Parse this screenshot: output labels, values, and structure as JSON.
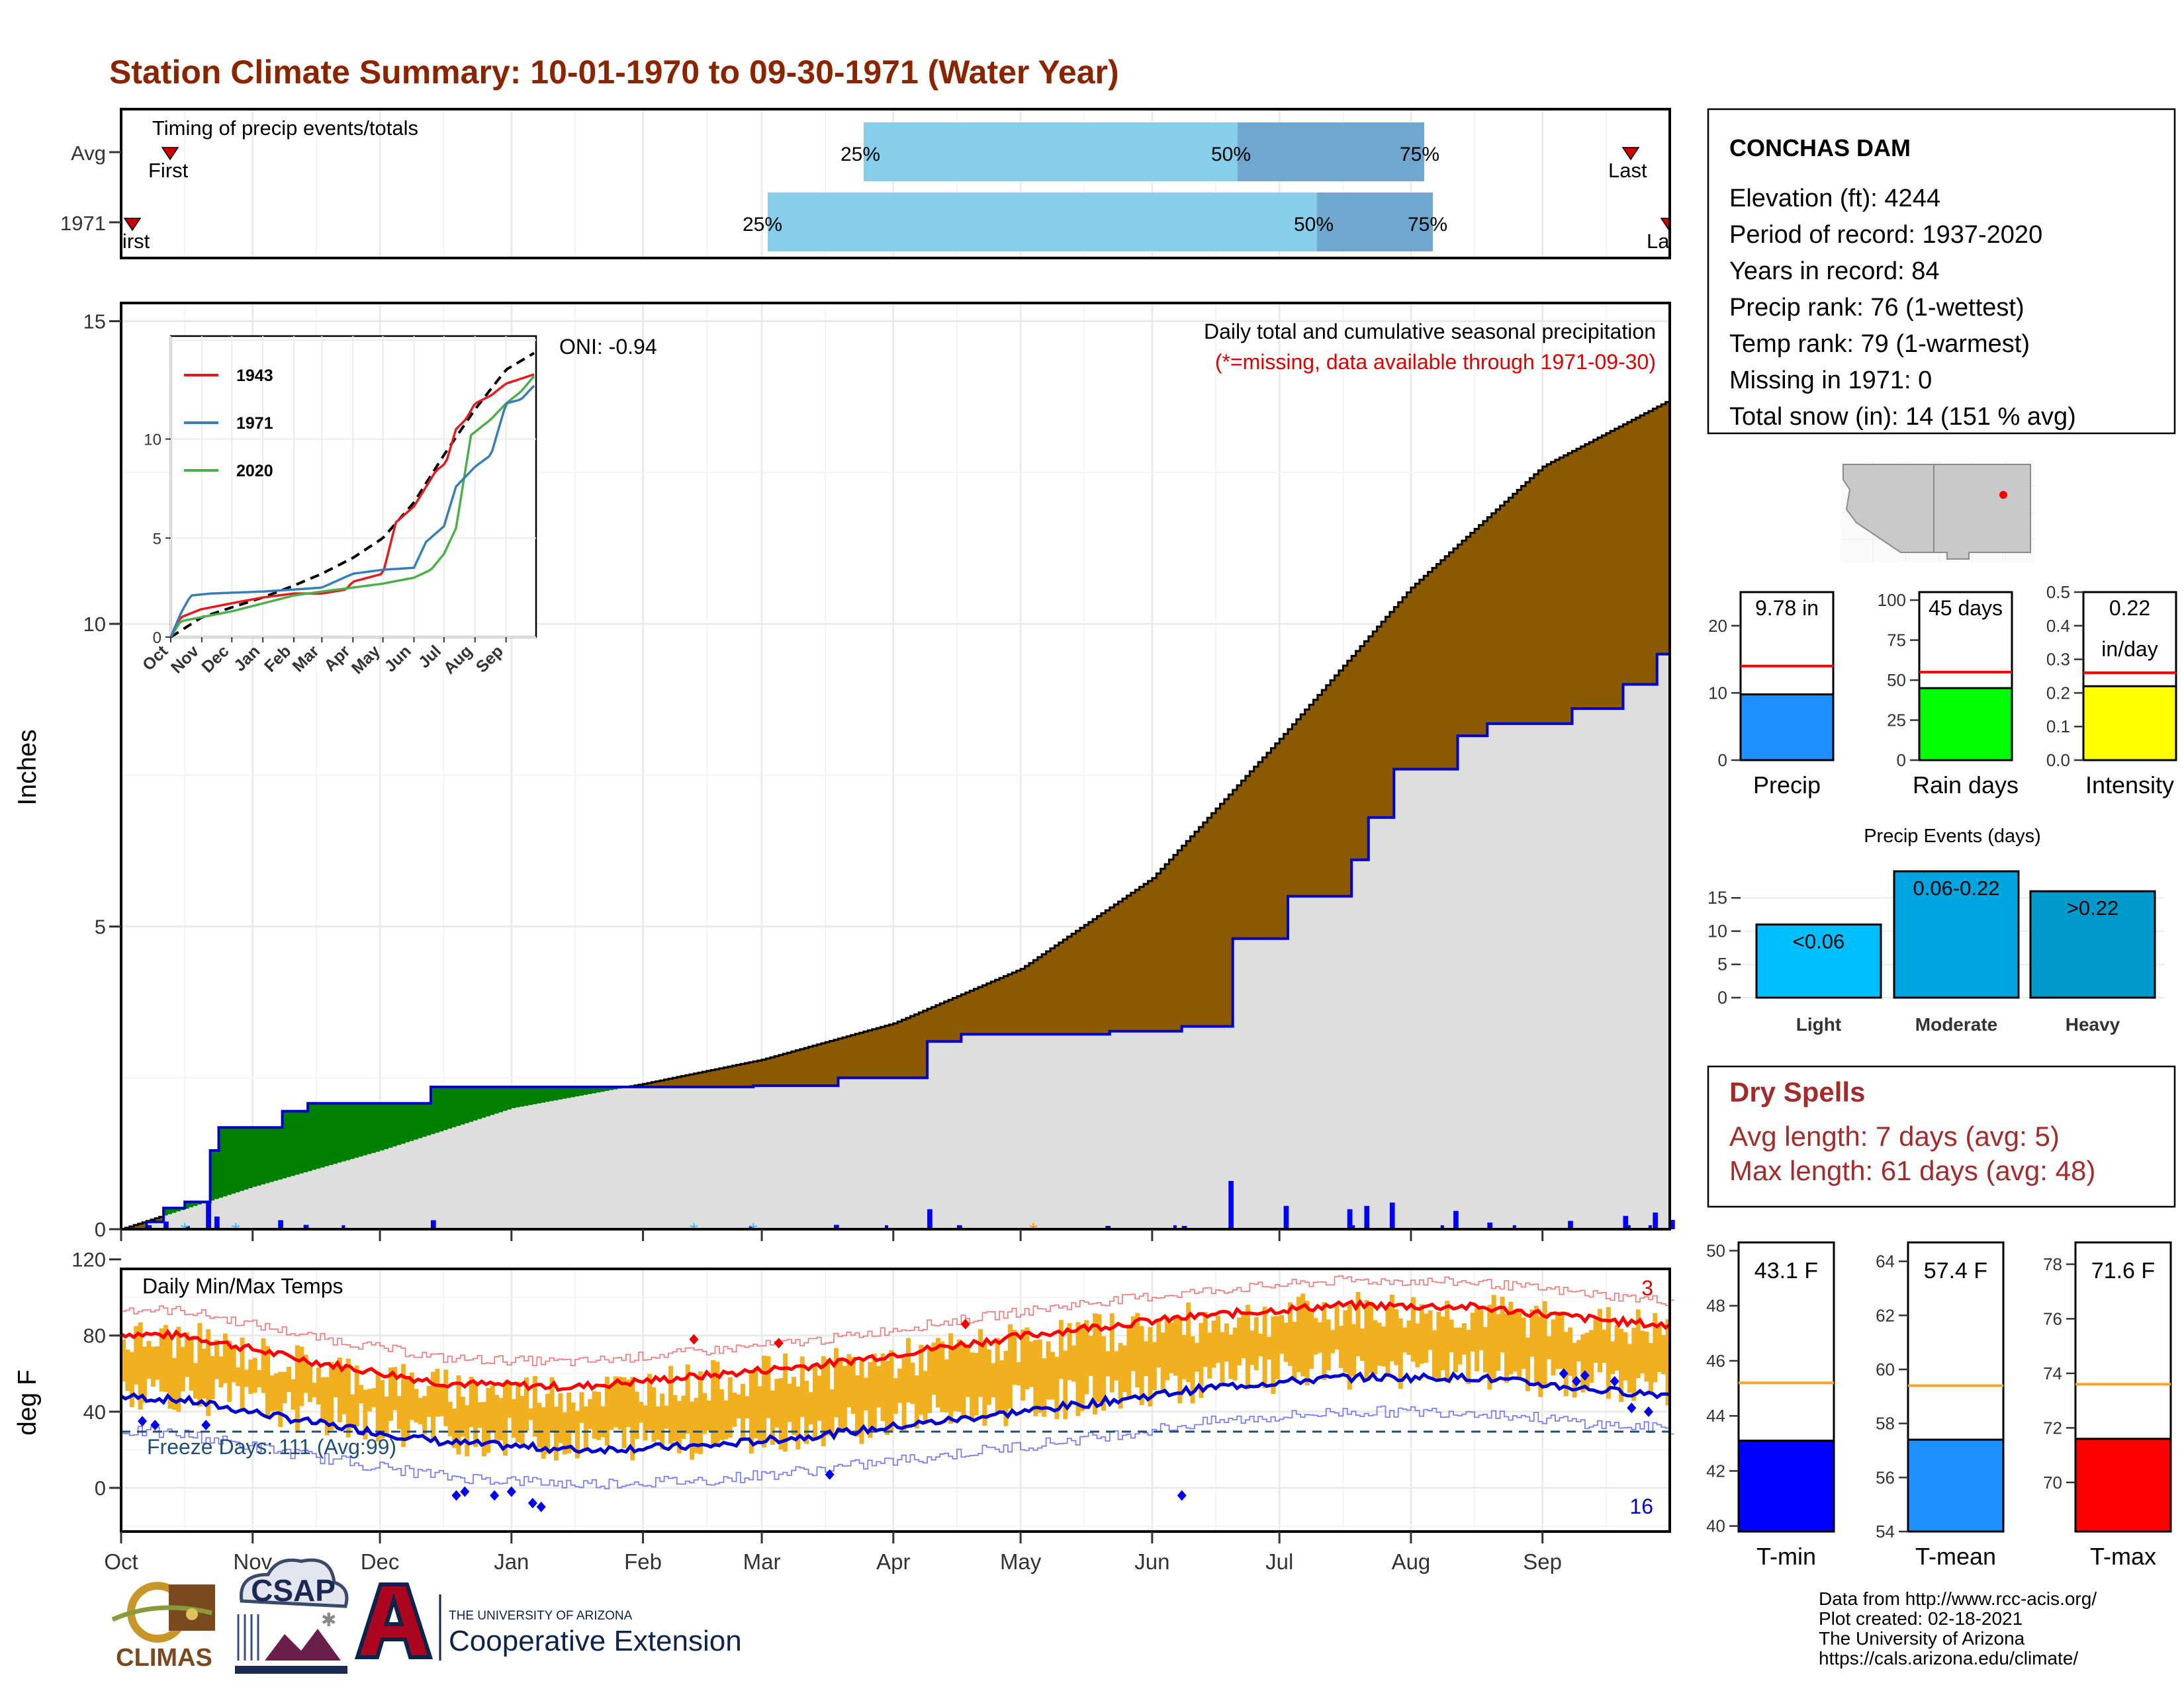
{
  "title": "Station Climate Summary: 10-01-1970 to 09-30-1971 (Water Year)",
  "colors": {
    "title": "#8b2500",
    "observed_cum": "#0000cd",
    "avg_cum_fill": "#8b5a00",
    "above_avg_fill": "#008000",
    "background_fill": "#dedede",
    "tmax_avg": "#ff0000",
    "tmin_avg": "#0000cd",
    "daily_range": "#f0b020",
    "freeze_line": "#1f4e79",
    "precip_gauge": "#1e90ff",
    "rain_days_gauge": "#00ff00",
    "intensity_gauge": "#ffff00",
    "tmin_gauge": "#0000ff",
    "tmean_gauge": "#1e90ff",
    "tmax_gauge": "#ff0000",
    "dry_spells": "#a52a2a",
    "event_light": "#00bfff",
    "event_moderate": "#00a5e0",
    "event_heavy": "#0099cc"
  },
  "timing": {
    "title": "Timing of precip events/totals",
    "rows": [
      {
        "label": "Avg",
        "first_label": "First",
        "last_label": "Last",
        "p25_label": "25%",
        "p50_label": "50%",
        "p75_label": "75%"
      },
      {
        "label": "1971",
        "first_label": "First",
        "last_label": "Last",
        "p25_label": "25%",
        "p50_label": "50%",
        "p75_label": "75%"
      }
    ]
  },
  "station": {
    "name": "CONCHAS DAM",
    "lines": [
      "Elevation (ft): 4244",
      "Period of record: 1937-2020",
      "Years in record: 84",
      "Precip rank: 76 (1-wettest)",
      "Temp rank: 79 (1-warmest)",
      "Missing in 1971: 0",
      "Total snow (in): 14 (151 % avg)"
    ]
  },
  "precip_panel": {
    "ylabel": "Inches",
    "caption": "Daily total and cumulative seasonal precipitation",
    "missing_note": "(*=missing, data available through 1971-09-30)",
    "oni": "ONI: -0.94",
    "month_labels": [
      "Oct",
      "Nov",
      "Dec",
      "Jan",
      "Feb",
      "Mar",
      "Apr",
      "May",
      "Jun",
      "Jul",
      "Aug",
      "Sep"
    ],
    "y_ticks": [
      "0",
      "5",
      "10",
      "15"
    ]
  },
  "inset": {
    "y_ticks": [
      "0",
      "5",
      "10"
    ],
    "x_labels": [
      "Oct",
      "Nov",
      "Dec",
      "Jan",
      "Feb",
      "Mar",
      "Apr",
      "May",
      "Jun",
      "Jul",
      "Aug",
      "Sep"
    ],
    "legend": [
      {
        "name": "1943",
        "color": "#e41a1c"
      },
      {
        "name": "1971",
        "color": "#377eb8"
      },
      {
        "name": "2020",
        "color": "#4daf4a"
      }
    ]
  },
  "gauges": [
    {
      "label": "Precip",
      "value_label": "9.78 in",
      "value": 9.78,
      "avg": 14,
      "ylim": [
        0,
        25
      ],
      "ticks": [
        "0",
        "10",
        "20"
      ]
    },
    {
      "label": "Rain days",
      "value_label": "45 days",
      "value": 45,
      "avg": 55,
      "ylim": [
        0,
        105
      ],
      "ticks": [
        "0",
        "25",
        "50",
        "75",
        "100"
      ]
    },
    {
      "label": "Intensity",
      "value_label": "0.22",
      "value_label2": "in/day",
      "value": 0.22,
      "avg": 0.26,
      "ylim": [
        0,
        0.5
      ],
      "ticks": [
        "0.0",
        "0.1",
        "0.2",
        "0.3",
        "0.4",
        "0.5"
      ]
    }
  ],
  "events": {
    "title": "Precip Events (days)",
    "bars": [
      {
        "name": "Light",
        "label": "<0.06",
        "value": 11
      },
      {
        "name": "Moderate",
        "label": "0.06-0.22",
        "value": 19
      },
      {
        "name": "Heavy",
        "label": ">0.22",
        "value": 16
      }
    ],
    "ticks": [
      "0",
      "5",
      "10",
      "15"
    ]
  },
  "dry_spells": {
    "title": "Dry Spells",
    "avg": "Avg length: 7 days (avg: 5)",
    "max": "Max length: 61 days (avg: 48)"
  },
  "temp_panel": {
    "ylabel": "deg F",
    "title": "Daily Min/Max Temps",
    "freeze_label": "Freeze Days: 111 (Avg:99)",
    "record_high_count": "3",
    "record_low_count": "16",
    "y_ticks": [
      "0",
      "40",
      "80",
      "120"
    ],
    "month_labels": [
      "Oct",
      "Nov",
      "Dec",
      "Jan",
      "Feb",
      "Mar",
      "Apr",
      "May",
      "Jun",
      "Jul",
      "Aug",
      "Sep"
    ]
  },
  "temp_gauges": [
    {
      "label": "T-min",
      "value_label": "43.1 F",
      "value": 43.1,
      "avg": 45.2,
      "ylim": [
        39.8,
        50.3
      ],
      "ticks": [
        "40",
        "42",
        "44",
        "46",
        "48",
        "50"
      ]
    },
    {
      "label": "T-mean",
      "value_label": "57.4 F",
      "value": 57.4,
      "avg": 59.4,
      "ylim": [
        54,
        64.7
      ],
      "ticks": [
        "54",
        "56",
        "58",
        "60",
        "62",
        "64"
      ]
    },
    {
      "label": "T-max",
      "value_label": "71.6 F",
      "value": 71.6,
      "avg": 73.6,
      "ylim": [
        68.2,
        78.8
      ],
      "ticks": [
        "70",
        "72",
        "74",
        "76",
        "78"
      ]
    }
  ],
  "footer": {
    "lines": [
      "Data from http://www.rcc-acis.org/",
      "Plot created: 02-18-2021",
      "The University of Arizona",
      "https://cals.arizona.edu/climate/"
    ],
    "logo_climas": "CLIMAS",
    "logo_csap": "CSAP",
    "logo_ua_small": "THE UNIVERSITY OF ARIZONA",
    "logo_ua_big": "Cooperative Extension"
  },
  "chart_data": [
    {
      "type": "area",
      "title": "Daily total and cumulative seasonal precipitation",
      "ylabel": "Inches",
      "ylim": [
        0,
        15
      ],
      "x": [
        "Oct",
        "Nov",
        "Dec",
        "Jan",
        "Feb",
        "Mar",
        "Apr",
        "May",
        "Jun",
        "Jul",
        "Aug",
        "Sep",
        "Sep 30"
      ],
      "series": [
        {
          "name": "1971",
          "values": [
            0,
            2.1,
            2.1,
            2.35,
            2.4,
            2.45,
            3.1,
            3.25,
            3.3,
            4.8,
            7.6,
            8.6,
            9.78
          ]
        },
        {
          "name": "Avg",
          "values": [
            0,
            0.7,
            1.3,
            2.0,
            2.4,
            2.8,
            3.4,
            4.3,
            5.8,
            8.1,
            10.6,
            12.6,
            13.7
          ]
        }
      ]
    },
    {
      "type": "line",
      "title": "Daily Min/Max Temps",
      "ylabel": "deg F",
      "ylim": [
        -20,
        120
      ],
      "x": [
        "Oct",
        "Nov",
        "Dec",
        "Jan",
        "Feb",
        "Mar",
        "Apr",
        "May",
        "Jun",
        "Jul",
        "Aug",
        "Sep"
      ],
      "series": [
        {
          "name": "avg max",
          "values": [
            77,
            63,
            52,
            50,
            56,
            62,
            72,
            81,
            88,
            93,
            92,
            85
          ]
        },
        {
          "name": "avg min",
          "values": [
            50,
            38,
            28,
            24,
            26,
            32,
            40,
            48,
            57,
            62,
            62,
            55
          ]
        }
      ]
    }
  ]
}
